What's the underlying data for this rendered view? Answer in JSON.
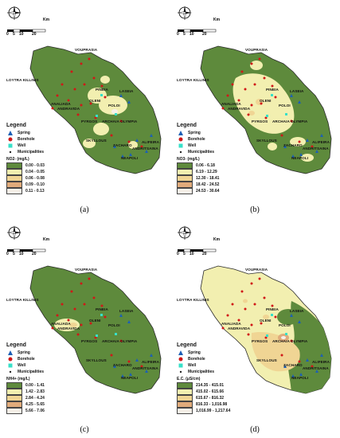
{
  "panels": [
    {
      "caption": "(a)",
      "legend_variable": "NO2- (mg/L)",
      "classes": [
        "0.00 - 0.03",
        "0.04 - 0.05",
        "0.06 - 0.08",
        "0.09 - 0.10",
        "0.11 - 0.13"
      ],
      "class_colors": [
        "#5e8a3c",
        "#f2efb0",
        "#f0d594",
        "#e0ab7b",
        "#f6f0e8"
      ]
    },
    {
      "caption": "(b)",
      "legend_variable": "NO3- (mg/L)",
      "classes": [
        "0.06 - 6.18",
        "6.19 - 12.29",
        "12.30 - 18.41",
        "18.42 - 24.52",
        "24.53 - 30.64"
      ],
      "class_colors": [
        "#5e8a3c",
        "#f2efb0",
        "#f0d594",
        "#e0ab7b",
        "#f6f0e8"
      ]
    },
    {
      "caption": "(c)",
      "legend_variable": "NH4+ (mg/L)",
      "classes": [
        "0.00 - 1.41",
        "1.42 - 2.83",
        "2.84 - 4.24",
        "4.25 - 5.65",
        "5.66 - 7.06"
      ],
      "class_colors": [
        "#5e8a3c",
        "#f2efb0",
        "#f0d594",
        "#e0ab7b",
        "#f6f0e8"
      ]
    },
    {
      "caption": "(d)",
      "legend_variable": "E.C. (μS/cm)",
      "classes": [
        "214.35 - 415.01",
        "415.02 - 615.66",
        "615.67 - 816.32",
        "816.33 - 1,016.98",
        "1,016.99 - 1,217.64"
      ],
      "class_colors": [
        "#5e8a3c",
        "#f2efb0",
        "#f0d594",
        "#e0ab7b",
        "#f6f0e8"
      ]
    }
  ],
  "legend": {
    "title": "Legend",
    "spring": "Spring",
    "borehole": "Borehole",
    "well": "Well",
    "municipalities": "Municipalities"
  },
  "scale": {
    "unit": "Km",
    "ticks": [
      "0",
      "5",
      "10",
      "20"
    ]
  },
  "towns": [
    "VOUPRASIA",
    "LOYTRA KILLINIS",
    "PINEIA",
    "LASEIA",
    "ANALIADA",
    "ANDRAVIDA",
    "OLENI",
    "POLOI",
    "PYRGOS",
    "ARCHAIA OLYMPIA",
    "SKYLLOUS",
    "ZACHARO",
    "ALIFEIRA",
    "ANDRITSAINA",
    "NEAPOLI"
  ],
  "colors": {
    "spring": "#1d5fb5",
    "borehole": "#d01818",
    "well": "#38e0c8",
    "municipality": "#222222",
    "boundary": "#2a2a2a"
  },
  "icons": [
    "compass-icon",
    "spring-icon",
    "borehole-icon",
    "well-icon",
    "municipality-icon"
  ]
}
